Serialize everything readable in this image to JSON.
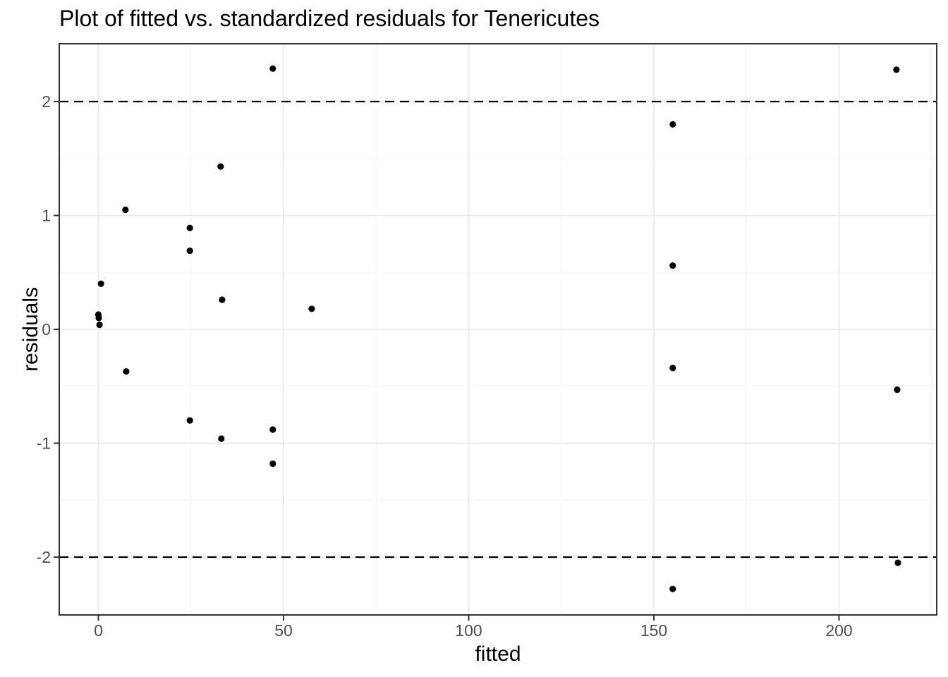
{
  "chart_data": {
    "type": "scatter",
    "title": "Plot of fitted vs. standardized residuals for Tenericutes",
    "xlabel": "fitted",
    "ylabel": "residuals",
    "xlim": [
      -10.57,
      226.38
    ],
    "ylim": [
      -2.508,
      2.508
    ],
    "x_ticks": [
      0,
      50,
      100,
      150,
      200
    ],
    "y_ticks": [
      -2,
      -1,
      0,
      1,
      2
    ],
    "x_minor_ticks": [
      25,
      75,
      125,
      175,
      225
    ],
    "y_minor_ticks": [
      -2.5,
      -1.5,
      -0.5,
      0.5,
      1.5,
      2.5
    ],
    "grid": true,
    "legend": false,
    "reference_lines": {
      "y_values": [
        2,
        -2
      ],
      "style": "dashed",
      "color": "#000000"
    },
    "points": [
      [
        0,
        0.13
      ],
      [
        0.1,
        0.1
      ],
      [
        0.3,
        0.04
      ],
      [
        0.7,
        0.4
      ],
      [
        7.3,
        1.05
      ],
      [
        7.5,
        -0.37
      ],
      [
        24.7,
        0.89
      ],
      [
        24.7,
        0.69
      ],
      [
        24.7,
        -0.8
      ],
      [
        33.0,
        1.43
      ],
      [
        33.4,
        0.26
      ],
      [
        33.2,
        -0.96
      ],
      [
        47.1,
        2.29
      ],
      [
        47.1,
        -0.88
      ],
      [
        47.1,
        -1.18
      ],
      [
        57.6,
        0.18
      ],
      [
        155.1,
        1.8
      ],
      [
        155.1,
        0.56
      ],
      [
        155.1,
        -0.34
      ],
      [
        155.1,
        -2.28
      ],
      [
        215.5,
        2.28
      ],
      [
        215.7,
        -0.53
      ],
      [
        215.9,
        -2.05
      ]
    ],
    "colors": {
      "point": "#000000",
      "panel_border": "#333333",
      "grid_major": "#e8e8e8",
      "grid_minor": "#f2f2f2",
      "tick": "#333333",
      "tick_label": "#4d4d4d",
      "title": "#000000",
      "background": "#ffffff"
    }
  }
}
